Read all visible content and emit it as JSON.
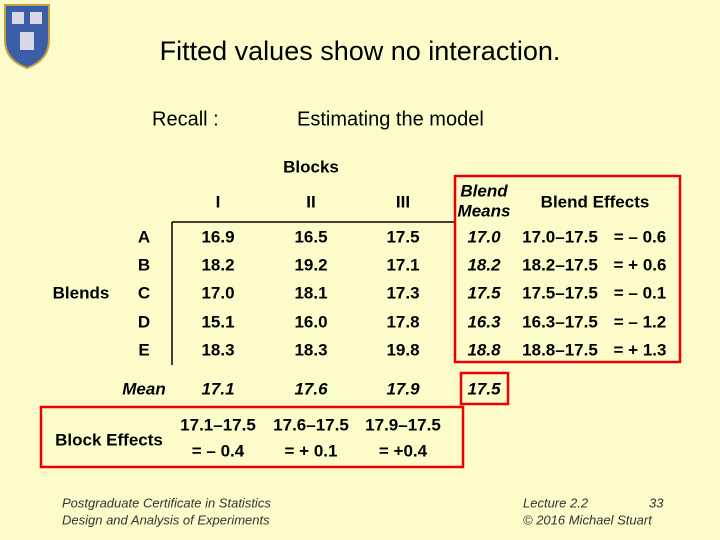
{
  "header": {
    "title": "Fitted values show no interaction."
  },
  "recall": "Recall :",
  "subtitle": "Estimating the model",
  "table": {
    "blocks_label": "Blocks",
    "columns": [
      "I",
      "II",
      "III"
    ],
    "blend_means_header": [
      "Blend",
      "Means"
    ],
    "blend_effects_header": "Blend Effects",
    "blends_label": "Blends",
    "rows": [
      {
        "label": "A",
        "values": [
          "16.9",
          "16.5",
          "17.5"
        ],
        "mean": "17.0",
        "effect_calc": "17.0–17.5",
        "effect": "= – 0.6"
      },
      {
        "label": "B",
        "values": [
          "18.2",
          "19.2",
          "17.1"
        ],
        "mean": "18.2",
        "effect_calc": "18.2–17.5",
        "effect": "= + 0.6"
      },
      {
        "label": "C",
        "values": [
          "17.0",
          "18.1",
          "17.3"
        ],
        "mean": "17.5",
        "effect_calc": "17.5–17.5",
        "effect": "= – 0.1"
      },
      {
        "label": "D",
        "values": [
          "15.1",
          "16.0",
          "17.8"
        ],
        "mean": "16.3",
        "effect_calc": "16.3–17.5",
        "effect": "= – 1.2"
      },
      {
        "label": "E",
        "values": [
          "18.3",
          "18.3",
          "19.8"
        ],
        "mean": "18.8",
        "effect_calc": "18.8–17.5",
        "effect": "= + 1.3"
      }
    ]
  },
  "mean_row": {
    "label": "Mean",
    "values": [
      "17.1",
      "17.6",
      "17.9"
    ],
    "grand_mean": "17.5"
  },
  "block_effects": {
    "label": "Block Effects",
    "calcs": [
      "17.1–17.5",
      "17.6–17.5",
      "17.9–17.5"
    ],
    "effects": [
      "= – 0.4",
      "= + 0.1",
      "= +0.4"
    ]
  },
  "footer": {
    "left": [
      "Postgraduate Certificate in Statistics",
      "Design and Analysis of Experiments"
    ],
    "lecture": "Lecture 2.2",
    "page": "33",
    "copyright": "© 2016 Michael Stuart"
  }
}
